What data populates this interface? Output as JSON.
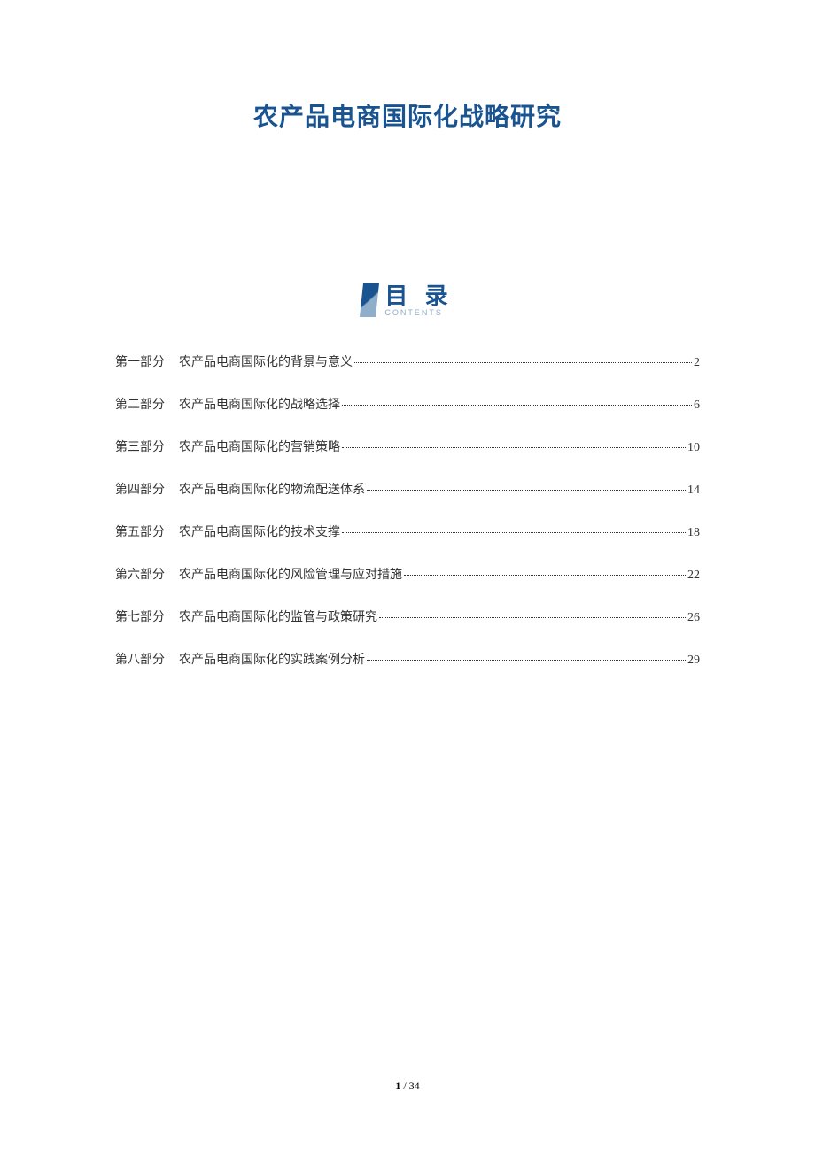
{
  "title": "农产品电商国际化战略研究",
  "toc_header": {
    "cn": "目 录",
    "en": "CONTENTS"
  },
  "toc": [
    {
      "part": "第一部分",
      "desc": "农产品电商国际化的背景与意义",
      "page": "2"
    },
    {
      "part": "第二部分",
      "desc": "农产品电商国际化的战略选择",
      "page": "6"
    },
    {
      "part": "第三部分",
      "desc": "农产品电商国际化的营销策略",
      "page": "10"
    },
    {
      "part": "第四部分",
      "desc": "农产品电商国际化的物流配送体系",
      "page": "14"
    },
    {
      "part": "第五部分",
      "desc": "农产品电商国际化的技术支撑",
      "page": "18"
    },
    {
      "part": "第六部分",
      "desc": "农产品电商国际化的风险管理与应对措施",
      "page": "22"
    },
    {
      "part": "第七部分",
      "desc": "农产品电商国际化的监管与政策研究",
      "page": "26"
    },
    {
      "part": "第八部分",
      "desc": "农产品电商国际化的实践案例分析",
      "page": "29"
    }
  ],
  "footer": {
    "current": "1",
    "sep": " / ",
    "total": "34"
  },
  "colors": {
    "title": "#1a5490",
    "toc_accent": "#1a5490",
    "toc_sub": "#8faec9",
    "text": "#333333",
    "background": "#ffffff"
  }
}
